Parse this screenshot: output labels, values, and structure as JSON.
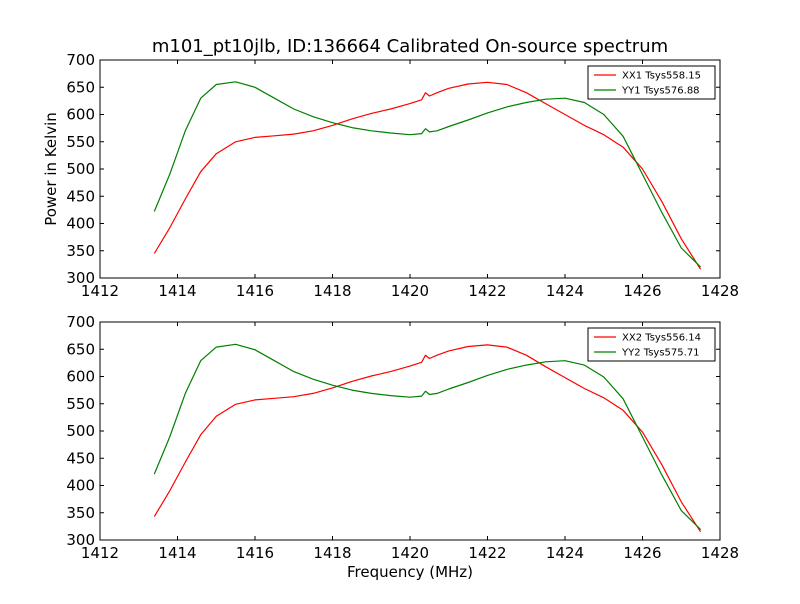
{
  "chart_data": [
    {
      "type": "line",
      "title": "m101_pt10jlb, ID:136664 Calibrated On-source spectrum",
      "xlabel": "",
      "ylabel": "Power in Kelvin",
      "xlim": [
        1412,
        1428
      ],
      "ylim": [
        300,
        700
      ],
      "xticks": [
        1412,
        1414,
        1416,
        1418,
        1420,
        1422,
        1424,
        1426,
        1428
      ],
      "yticks": [
        300,
        350,
        400,
        450,
        500,
        550,
        600,
        650,
        700
      ],
      "legend_position": "top-right",
      "grid": false,
      "series": [
        {
          "name": "XX1 Tsys558.15",
          "color": "#ff0000",
          "x": [
            1413.4,
            1413.8,
            1414.2,
            1414.6,
            1415.0,
            1415.5,
            1416.0,
            1416.5,
            1417.0,
            1417.5,
            1418.0,
            1418.5,
            1419.0,
            1419.5,
            1420.0,
            1420.3,
            1420.4,
            1420.5,
            1420.7,
            1421.0,
            1421.5,
            1422.0,
            1422.5,
            1423.0,
            1423.5,
            1424.0,
            1424.5,
            1425.0,
            1425.5,
            1426.0,
            1426.5,
            1427.0,
            1427.5
          ],
          "values": [
            345,
            392,
            445,
            495,
            528,
            550,
            558,
            561,
            564,
            570,
            580,
            592,
            602,
            610,
            620,
            627,
            640,
            634,
            640,
            648,
            656,
            659,
            655,
            640,
            620,
            600,
            580,
            563,
            540,
            500,
            440,
            372,
            316
          ]
        },
        {
          "name": "YY1 Tsys576.88",
          "color": "#008000",
          "x": [
            1413.4,
            1413.8,
            1414.2,
            1414.6,
            1415.0,
            1415.5,
            1416.0,
            1416.5,
            1417.0,
            1417.5,
            1418.0,
            1418.5,
            1419.0,
            1419.5,
            1420.0,
            1420.3,
            1420.4,
            1420.5,
            1420.7,
            1421.0,
            1421.5,
            1422.0,
            1422.5,
            1423.0,
            1423.5,
            1424.0,
            1424.5,
            1425.0,
            1425.5,
            1426.0,
            1426.5,
            1427.0,
            1427.5
          ],
          "values": [
            422,
            490,
            570,
            630,
            655,
            660,
            650,
            630,
            610,
            596,
            585,
            576,
            570,
            566,
            563,
            565,
            574,
            568,
            570,
            578,
            590,
            603,
            614,
            622,
            628,
            630,
            622,
            600,
            560,
            490,
            420,
            355,
            320
          ]
        }
      ]
    },
    {
      "type": "line",
      "title": "",
      "xlabel": "Frequency (MHz)",
      "ylabel": "",
      "xlim": [
        1412,
        1428
      ],
      "ylim": [
        300,
        700
      ],
      "xticks": [
        1412,
        1414,
        1416,
        1418,
        1420,
        1422,
        1424,
        1426,
        1428
      ],
      "yticks": [
        300,
        350,
        400,
        450,
        500,
        550,
        600,
        650,
        700
      ],
      "legend_position": "top-right",
      "grid": false,
      "series": [
        {
          "name": "XX2 Tsys556.14",
          "color": "#ff0000",
          "x": [
            1413.4,
            1413.8,
            1414.2,
            1414.6,
            1415.0,
            1415.5,
            1416.0,
            1416.5,
            1417.0,
            1417.5,
            1418.0,
            1418.5,
            1419.0,
            1419.5,
            1420.0,
            1420.3,
            1420.4,
            1420.5,
            1420.7,
            1421.0,
            1421.5,
            1422.0,
            1422.5,
            1423.0,
            1423.5,
            1424.0,
            1424.5,
            1425.0,
            1425.5,
            1426.0,
            1426.5,
            1427.0,
            1427.5
          ],
          "values": [
            343,
            390,
            443,
            493,
            527,
            549,
            557,
            560,
            563,
            569,
            579,
            591,
            601,
            609,
            619,
            626,
            639,
            633,
            639,
            647,
            655,
            658,
            654,
            639,
            618,
            598,
            578,
            561,
            538,
            498,
            438,
            370,
            315
          ]
        },
        {
          "name": "YY2 Tsys575.71",
          "color": "#008000",
          "x": [
            1413.4,
            1413.8,
            1414.2,
            1414.6,
            1415.0,
            1415.5,
            1416.0,
            1416.5,
            1417.0,
            1417.5,
            1418.0,
            1418.5,
            1419.0,
            1419.5,
            1420.0,
            1420.3,
            1420.4,
            1420.5,
            1420.7,
            1421.0,
            1421.5,
            1422.0,
            1422.5,
            1423.0,
            1423.5,
            1424.0,
            1424.5,
            1425.0,
            1425.5,
            1426.0,
            1426.5,
            1427.0,
            1427.5
          ],
          "values": [
            421,
            489,
            569,
            629,
            654,
            659,
            649,
            629,
            609,
            595,
            584,
            575,
            569,
            565,
            562,
            564,
            573,
            567,
            569,
            577,
            589,
            602,
            613,
            621,
            627,
            629,
            621,
            599,
            559,
            489,
            419,
            354,
            319
          ]
        }
      ]
    }
  ]
}
